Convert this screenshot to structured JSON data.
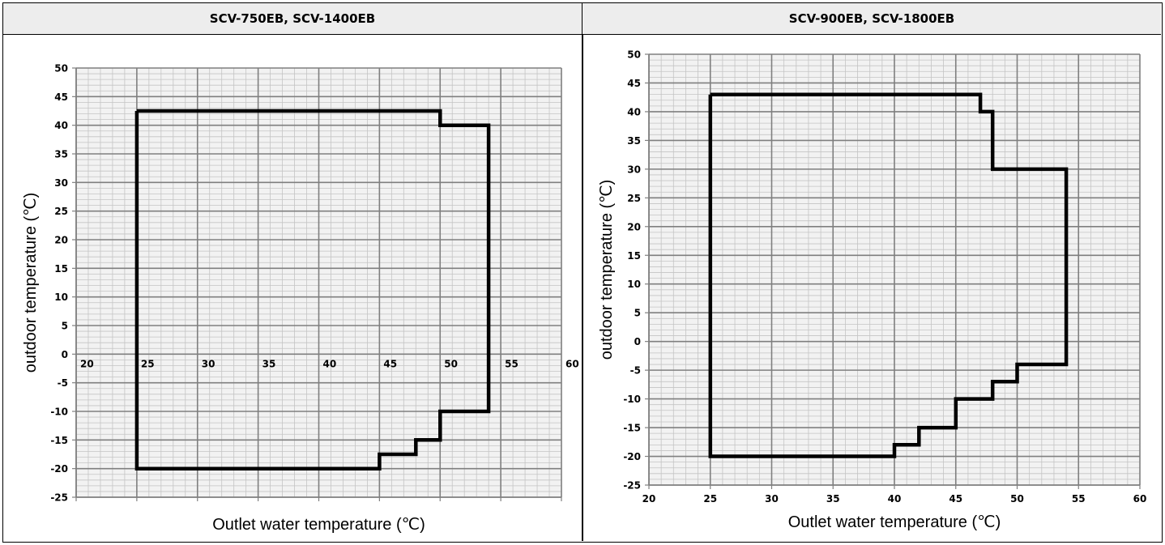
{
  "chart_data": [
    {
      "type": "line",
      "title": "SCV-750EB, SCV-1400EB",
      "xlabel": "Outlet water  temperature (℃)",
      "ylabel": "outdoor temperature (℃)",
      "xlim": [
        20,
        60
      ],
      "ylim": [
        -25,
        50
      ],
      "x_ticks": [
        20,
        25,
        30,
        35,
        40,
        45,
        50,
        55,
        60
      ],
      "y_ticks": [
        50,
        45,
        40,
        35,
        30,
        25,
        20,
        15,
        10,
        5,
        0,
        -5,
        -10,
        -15,
        -20,
        -25
      ],
      "x_tick_labels_at_y0": true,
      "grid": "major and minor",
      "series": [
        {
          "x": [
            25,
            50,
            50,
            54,
            54,
            50,
            50,
            48,
            48,
            45,
            45,
            25,
            25
          ],
          "y": [
            42.5,
            42.5,
            40,
            40,
            -10,
            -10,
            -15,
            -15,
            -17.5,
            -17.5,
            -20,
            -20,
            42.5
          ]
        }
      ]
    },
    {
      "type": "line",
      "title": "SCV-900EB, SCV-1800EB",
      "xlabel": "Outlet water  temperature (℃)",
      "ylabel": "outdoor temperature (℃)",
      "xlim": [
        20,
        60
      ],
      "ylim": [
        -25,
        50
      ],
      "x_ticks": [
        20,
        25,
        30,
        35,
        40,
        45,
        50,
        55,
        60
      ],
      "y_ticks": [
        50,
        45,
        40,
        35,
        30,
        25,
        20,
        15,
        10,
        5,
        0,
        -5,
        -10,
        -15,
        -20,
        -25
      ],
      "x_tick_labels_at_y0": false,
      "grid": "major and minor",
      "series": [
        {
          "x": [
            25,
            47,
            47,
            48,
            48,
            54,
            54,
            50,
            50,
            48,
            48,
            45,
            45,
            42,
            42,
            40,
            40,
            25,
            25
          ],
          "y": [
            43,
            43,
            40,
            40,
            30,
            30,
            -4,
            -4,
            -7,
            -7,
            -10,
            -10,
            -15,
            -15,
            -18,
            -18,
            -20,
            -20,
            43
          ]
        }
      ]
    }
  ]
}
